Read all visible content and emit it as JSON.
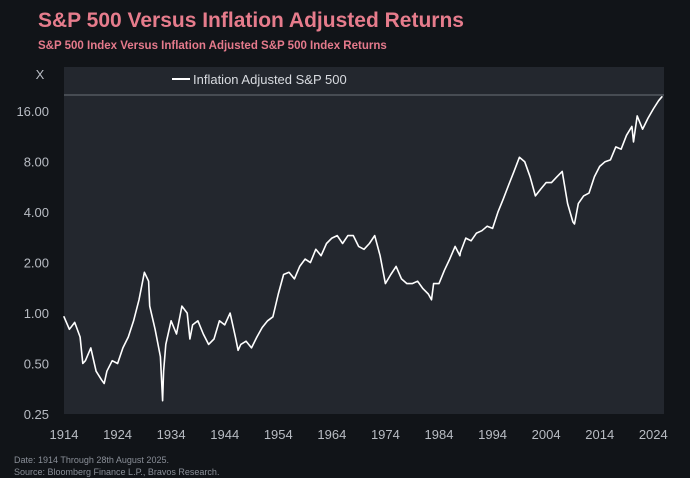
{
  "header": {
    "title": "S&P 500 Versus Inflation Adjusted Returns",
    "subtitle": "S&P 500 Index Versus Inflation Adjusted S&P 500 Index Returns"
  },
  "footer": {
    "date_note": "Date: 1914 Through 28th August 2025.",
    "source_note": "Source: Bloomberg Finance L.P., Bravos Research."
  },
  "colors": {
    "background": "#111418",
    "plot_area": "#23272e",
    "line": "#ffffff",
    "title": "#e67c8c"
  },
  "chart_data": {
    "type": "line",
    "scale": "log",
    "y_unit_label": "X",
    "legend": "top-left",
    "grid": false,
    "xlim": [
      1914,
      2026
    ],
    "ylim": [
      0.25,
      20
    ],
    "x_ticks": [
      1914,
      1924,
      1934,
      1944,
      1954,
      1964,
      1974,
      1984,
      1994,
      2004,
      2014,
      2024
    ],
    "y_ticks": [
      0.25,
      0.5,
      1,
      2,
      4,
      8,
      16
    ],
    "y_tick_labels": [
      "0.25",
      "0.50",
      "1.00",
      "2.00",
      "4.00",
      "8.00",
      "16.00"
    ],
    "series": [
      {
        "name": "Inflation Adjusted S&P 500",
        "x": [
          1914,
          1915,
          1916,
          1917,
          1917.5,
          1918,
          1919,
          1920,
          1921,
          1921.5,
          1922,
          1923,
          1924,
          1925,
          1926,
          1927,
          1928,
          1929,
          1929.8,
          1930,
          1931,
          1932,
          1932.4,
          1932.6,
          1933,
          1934,
          1935,
          1936,
          1937,
          1937.5,
          1938,
          1939,
          1940,
          1941,
          1942,
          1943,
          1944,
          1945,
          1946,
          1946.5,
          1947,
          1948,
          1949,
          1950,
          1951,
          1952,
          1953,
          1954,
          1955,
          1956,
          1957,
          1958,
          1959,
          1960,
          1961,
          1962,
          1963,
          1964,
          1965,
          1966,
          1967,
          1968,
          1969,
          1970,
          1971,
          1972,
          1973,
          1974,
          1975,
          1976,
          1977,
          1978,
          1979,
          1980,
          1981,
          1982,
          1982.6,
          1983,
          1984,
          1985,
          1986,
          1987,
          1987.9,
          1988,
          1989,
          1990,
          1991,
          1992,
          1993,
          1994,
          1995,
          1996,
          1997,
          1998,
          1999,
          2000,
          2001,
          2002,
          2003,
          2004,
          2005,
          2006,
          2007,
          2008,
          2009,
          2009.3,
          2010,
          2011,
          2012,
          2013,
          2014,
          2015,
          2016,
          2017,
          2018,
          2019,
          2020,
          2020.3,
          2021,
          2022,
          2023,
          2024,
          2025,
          2025.6
        ],
        "values": [
          0.95,
          0.8,
          0.88,
          0.72,
          0.5,
          0.52,
          0.62,
          0.45,
          0.4,
          0.38,
          0.45,
          0.52,
          0.5,
          0.62,
          0.72,
          0.9,
          1.2,
          1.75,
          1.55,
          1.1,
          0.8,
          0.55,
          0.3,
          0.45,
          0.65,
          0.9,
          0.75,
          1.1,
          1.0,
          0.7,
          0.85,
          0.9,
          0.75,
          0.65,
          0.7,
          0.9,
          0.85,
          1.0,
          0.72,
          0.6,
          0.65,
          0.68,
          0.62,
          0.72,
          0.82,
          0.9,
          0.95,
          1.3,
          1.7,
          1.75,
          1.6,
          1.9,
          2.1,
          2.0,
          2.4,
          2.2,
          2.6,
          2.8,
          2.9,
          2.6,
          2.9,
          2.9,
          2.5,
          2.4,
          2.6,
          2.9,
          2.2,
          1.5,
          1.7,
          1.9,
          1.6,
          1.5,
          1.5,
          1.55,
          1.4,
          1.3,
          1.2,
          1.5,
          1.5,
          1.8,
          2.1,
          2.5,
          2.2,
          2.3,
          2.8,
          2.7,
          3.0,
          3.1,
          3.3,
          3.2,
          4.0,
          4.8,
          5.8,
          7.0,
          8.5,
          8.0,
          6.5,
          5.0,
          5.5,
          6.0,
          6.0,
          6.5,
          7.0,
          4.5,
          3.5,
          3.4,
          4.5,
          5.0,
          5.2,
          6.5,
          7.5,
          8.0,
          8.2,
          9.8,
          9.5,
          11.5,
          13.0,
          10.5,
          15.0,
          12.5,
          14.5,
          16.5,
          18.5,
          19.5
        ]
      }
    ]
  }
}
